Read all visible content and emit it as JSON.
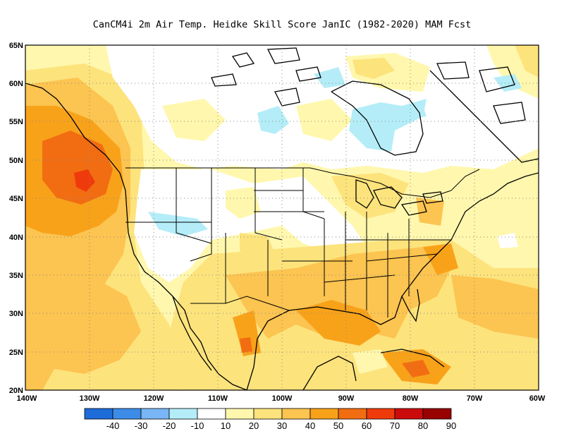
{
  "title": "CanCM4i  2m Air Temp. Heidke Skill Score JanIC (1982-2020) MAM Fcst",
  "lat_labels": [
    "65N",
    "60N",
    "55N",
    "50N",
    "45N",
    "40N",
    "35N",
    "30N",
    "25N",
    "20N"
  ],
  "lon_labels": [
    "140W",
    "130W",
    "120W",
    "110W",
    "100W",
    "90W",
    "80W",
    "70W",
    "60W"
  ],
  "colorbar": {
    "colors": [
      "#1e6cd9",
      "#3c8ce8",
      "#78b6f5",
      "#b4edf8",
      "#ffffff",
      "#fff7ad",
      "#fde37c",
      "#fcc450",
      "#f8a21a",
      "#f26d12",
      "#ef3b0c",
      "#cc0c0c",
      "#990000"
    ],
    "labels": [
      "-40",
      "-30",
      "-20",
      "-10",
      "10",
      "20",
      "30",
      "40",
      "50",
      "60",
      "70",
      "80",
      "90"
    ]
  },
  "map_data": {
    "type": "filled-contour-map",
    "variable": "2m Air Temp. Heidke Skill Score",
    "region": "North America",
    "lon_range": [
      -140,
      -60
    ],
    "lat_range": [
      20,
      65
    ],
    "regions": [
      {
        "area": "Pacific Northwest coast / NE Pacific",
        "score_range": "40-70"
      },
      {
        "area": "Gulf of Mexico / SE US",
        "score_range": "30-50"
      },
      {
        "area": "Caribbean",
        "score_range": "40-60"
      },
      {
        "area": "Western Atlantic",
        "score_range": "20-40"
      },
      {
        "area": "Hudson Bay",
        "score_range": "-10-10"
      },
      {
        "area": "Northern Canada",
        "score_range": "-10-10"
      },
      {
        "area": "Intermountain West",
        "score_range": "-10-10"
      },
      {
        "area": "Great Lakes",
        "score_range": "10-30"
      },
      {
        "area": "Mexico",
        "score_range": "20-50"
      }
    ]
  }
}
